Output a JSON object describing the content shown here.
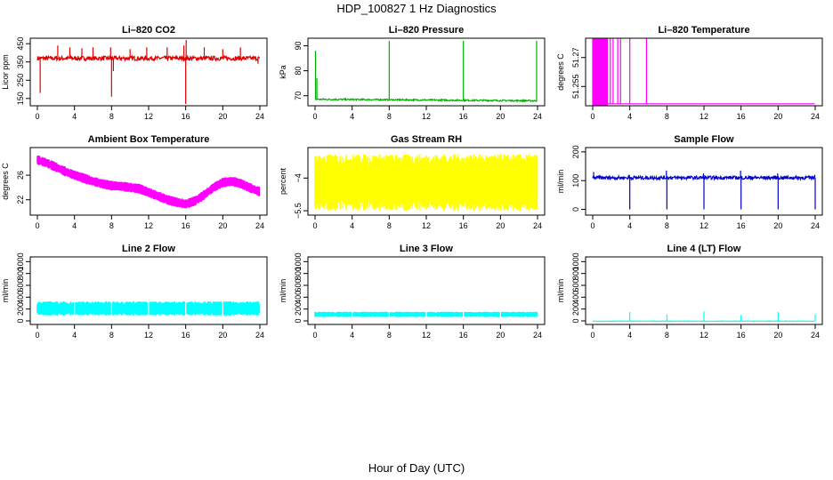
{
  "title": "HDP_100827  1 Hz Diagnostics",
  "xlabel": "Hour of Day (UTC)",
  "chart_data": [
    {
      "id": "co2",
      "type": "line",
      "title": "Li–820 CO2",
      "ylabel": "Licor ppm",
      "color": "#e00000",
      "xlim": [
        0,
        24
      ],
      "ylim": [
        110,
        480
      ],
      "xticks": [
        0,
        4,
        8,
        12,
        16,
        20,
        24
      ],
      "yticks": [
        150,
        250,
        350,
        450
      ],
      "series": {
        "baseline": 370,
        "noise": 12,
        "spikes": [
          [
            0.3,
            180
          ],
          [
            2.2,
            440
          ],
          [
            3.5,
            430
          ],
          [
            4.8,
            425
          ],
          [
            6.0,
            430
          ],
          [
            7.9,
            430
          ],
          [
            8.0,
            160
          ],
          [
            8.2,
            300
          ],
          [
            10.0,
            420
          ],
          [
            11.8,
            430
          ],
          [
            14.0,
            430
          ],
          [
            15.8,
            440
          ],
          [
            16.0,
            120
          ],
          [
            16.05,
            470
          ],
          [
            18.0,
            430
          ],
          [
            20.0,
            420
          ],
          [
            21.9,
            430
          ],
          [
            23.8,
            340
          ]
        ]
      }
    },
    {
      "id": "pressure",
      "type": "line",
      "title": "Li–820 Pressure",
      "ylabel": "kPa",
      "color": "#00b000",
      "xlim": [
        0,
        24
      ],
      "ylim": [
        66,
        93
      ],
      "xticks": [
        0,
        4,
        8,
        12,
        16,
        20,
        24
      ],
      "yticks": [
        70,
        80,
        90
      ],
      "series": {
        "baseline": [
          68.6,
          68.0
        ],
        "noise": 0.3,
        "spikes": [
          [
            0.05,
            88
          ],
          [
            0.2,
            77
          ],
          [
            8.0,
            92
          ],
          [
            16.0,
            92
          ],
          [
            23.9,
            92
          ]
        ]
      }
    },
    {
      "id": "li820temp",
      "type": "line",
      "title": "Li–820 Temperature",
      "ylabel": "degrees C",
      "color": "#ff00ff",
      "xlim": [
        0,
        24
      ],
      "ylim": [
        51.245,
        51.28
      ],
      "xticks": [
        0,
        4,
        8,
        12,
        16,
        20,
        24
      ],
      "yticks": [
        51.255,
        51.27
      ],
      "series": {
        "baseline": 51.246,
        "fill_range": [
          0.0,
          1.6
        ],
        "spikes": [
          [
            1.9,
            51.28
          ],
          [
            2.2,
            51.28
          ],
          [
            2.7,
            51.28
          ],
          [
            3.0,
            51.28
          ],
          [
            4.0,
            51.28
          ],
          [
            5.8,
            51.28
          ]
        ]
      }
    },
    {
      "id": "ambient",
      "type": "band",
      "title": "Ambient Box Temperature",
      "ylabel": "degrees C",
      "color": "#ff00ff",
      "xlim": [
        0,
        24
      ],
      "ylim": [
        19.5,
        30.5
      ],
      "xticks": [
        0,
        4,
        8,
        12,
        16,
        20,
        24
      ],
      "yticks": [
        22,
        26
      ],
      "series": {
        "x": [
          0,
          1,
          2,
          3,
          4,
          5,
          6,
          7,
          8,
          9,
          10,
          11,
          12,
          13,
          14,
          15,
          16,
          17,
          18,
          19,
          20,
          21,
          22,
          23,
          24
        ],
        "y": [
          28.5,
          28.0,
          27.3,
          26.6,
          26.0,
          25.5,
          25.0,
          24.6,
          24.3,
          24.2,
          24.0,
          23.8,
          23.2,
          22.6,
          22.0,
          21.6,
          21.3,
          21.8,
          22.8,
          24.0,
          24.8,
          25.0,
          24.6,
          23.9,
          23.3
        ],
        "halfwidth": 0.8
      }
    },
    {
      "id": "rh",
      "type": "band",
      "title": "Gas Stream RH",
      "ylabel": "percent",
      "color": "#ffff00",
      "xlim": [
        0,
        24
      ],
      "ylim": [
        -5.7,
        -2.6
      ],
      "xticks": [
        0,
        4,
        8,
        12,
        16,
        20,
        24
      ],
      "yticks": [
        -5.5,
        -4.0
      ],
      "series": {
        "x": [
          0,
          24
        ],
        "y": [
          -4.2,
          -4.2
        ],
        "halfwidth": 1.3
      }
    },
    {
      "id": "sample",
      "type": "line",
      "title": "Sample Flow",
      "ylabel": "ml/min",
      "color": "#0000cc",
      "xlim": [
        0,
        24
      ],
      "ylim": [
        -20,
        215
      ],
      "xticks": [
        0,
        4,
        8,
        12,
        16,
        20,
        24
      ],
      "yticks": [
        0,
        100,
        200
      ],
      "series": {
        "baseline": 110,
        "noise": 6,
        "spikes": [
          [
            0.1,
            130
          ],
          [
            4.0,
            0
          ],
          [
            3.95,
            120
          ],
          [
            8.0,
            0
          ],
          [
            7.95,
            135
          ],
          [
            12.0,
            0
          ],
          [
            11.95,
            125
          ],
          [
            16.0,
            0
          ],
          [
            15.95,
            135
          ],
          [
            20.0,
            0
          ],
          [
            19.95,
            125
          ],
          [
            24.0,
            0
          ],
          [
            23.95,
            120
          ]
        ]
      }
    },
    {
      "id": "line2",
      "type": "band",
      "title": "Line 2 Flow",
      "ylabel": "ml/min",
      "color": "#00ffff",
      "xlim": [
        0,
        24
      ],
      "ylim": [
        -60,
        1080
      ],
      "xticks": [
        0,
        4,
        8,
        12,
        16,
        20,
        24
      ],
      "yticks": [
        0,
        200,
        400,
        600,
        800,
        1000
      ],
      "series": {
        "x": [
          0,
          24
        ],
        "y": [
          210,
          210
        ],
        "halfwidth": 120,
        "gaps": [
          4,
          8,
          12,
          16,
          20
        ]
      }
    },
    {
      "id": "line3",
      "type": "band",
      "title": "Line 3 Flow",
      "ylabel": "ml/min",
      "color": "#00ffff",
      "xlim": [
        0,
        24
      ],
      "ylim": [
        -60,
        1080
      ],
      "xticks": [
        0,
        4,
        8,
        12,
        16,
        20,
        24
      ],
      "yticks": [
        0,
        200,
        400,
        600,
        800,
        1000
      ],
      "series": {
        "x": [
          0,
          24
        ],
        "y": [
          110,
          110
        ],
        "halfwidth": 45,
        "gaps": [
          4,
          8,
          12,
          16,
          20
        ]
      }
    },
    {
      "id": "line4",
      "type": "line",
      "title": "Line 4 (LT) Flow",
      "ylabel": "ml/min",
      "color": "#00ffff",
      "xlim": [
        0,
        24
      ],
      "ylim": [
        -60,
        1080
      ],
      "xticks": [
        0,
        4,
        8,
        12,
        16,
        20,
        24
      ],
      "yticks": [
        0,
        200,
        400,
        600,
        800,
        1000
      ],
      "series": {
        "baseline": -5,
        "noise": 4,
        "spikes": [
          [
            4.0,
            150
          ],
          [
            8.0,
            110
          ],
          [
            12.0,
            160
          ],
          [
            16.0,
            100
          ],
          [
            20.0,
            150
          ],
          [
            24.0,
            110
          ]
        ]
      }
    }
  ]
}
